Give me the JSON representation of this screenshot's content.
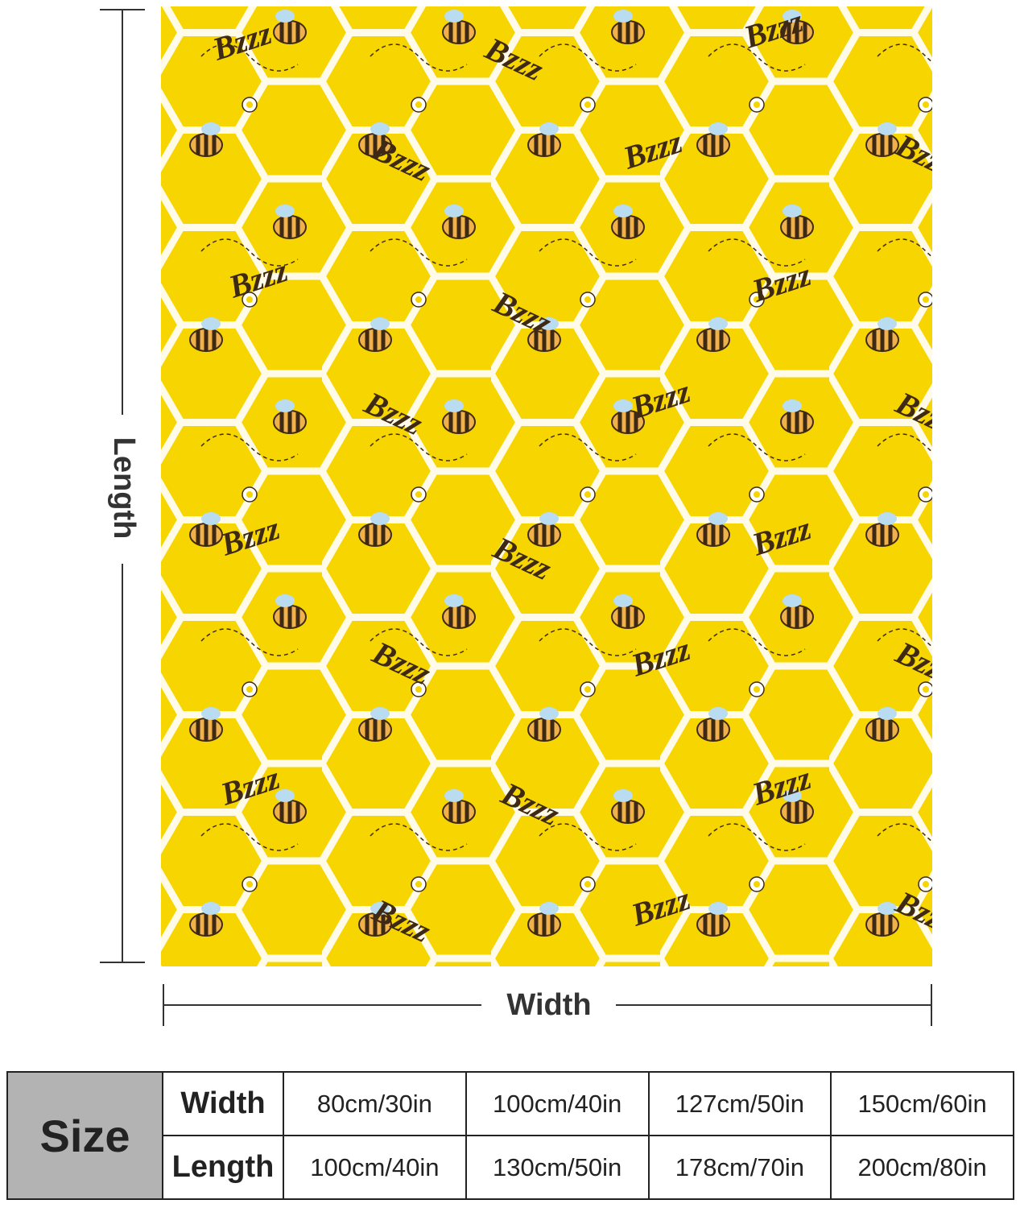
{
  "dimension_labels": {
    "length": "Length",
    "width": "Width"
  },
  "blanket": {
    "pattern_text": "Bzzz"
  },
  "size_table": {
    "header": "Size",
    "rows": [
      {
        "label": "Width",
        "values": [
          "80cm/30in",
          "100cm/40in",
          "127cm/50in",
          "150cm/60in"
        ]
      },
      {
        "label": "Length",
        "values": [
          "100cm/40in",
          "130cm/50in",
          "178cm/70in",
          "200cm/80in"
        ]
      }
    ]
  }
}
